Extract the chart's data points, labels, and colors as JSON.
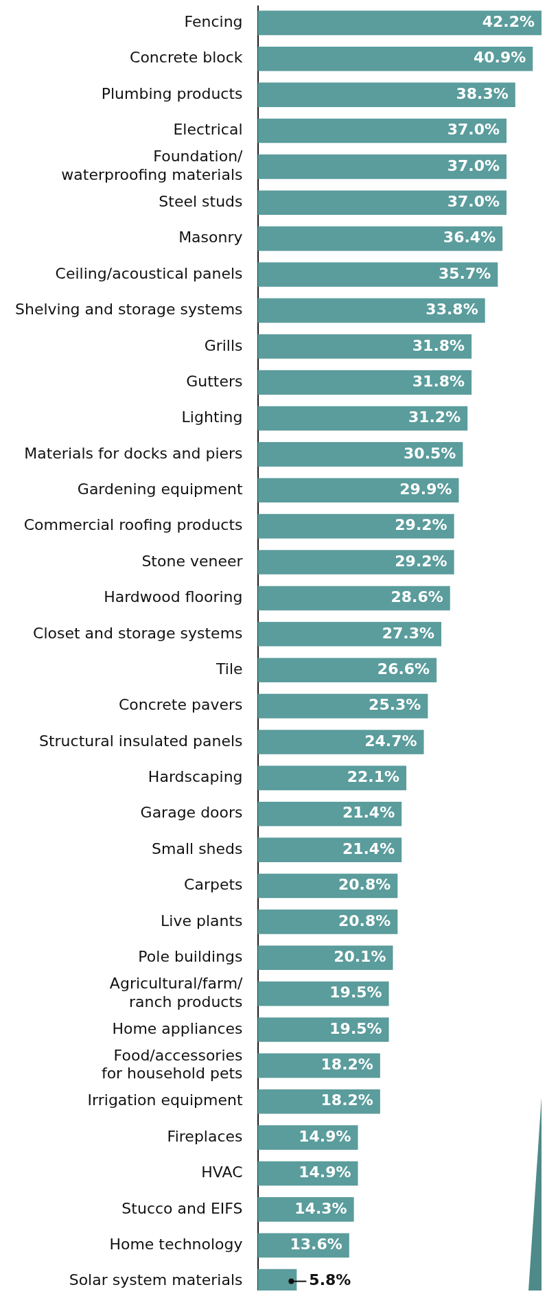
{
  "chart_data": {
    "type": "bar",
    "orientation": "horizontal",
    "color": "#5b9c9c",
    "categories": [
      "Fencing",
      "Concrete block",
      "Plumbing products",
      "Electrical",
      "Foundation/waterproofing materials",
      "Steel studs",
      "Masonry",
      "Ceiling/acoustical panels",
      "Shelving and storage systems",
      "Grills",
      "Gutters",
      "Lighting",
      "Materials for docks and piers",
      "Gardening equipment",
      "Commercial roofing products",
      "Stone veneer",
      "Hardwood flooring",
      "Closet and storage systems",
      "Tile",
      "Concrete pavers",
      "Structural insulated panels",
      "Hardscaping",
      "Garage doors",
      "Small sheds",
      "Carpets",
      "Live plants",
      "Pole buildings",
      "Agricultural/farm/ranch products",
      "Home appliances",
      "Food/accessories for household pets",
      "Irrigation equipment",
      "Fireplaces",
      "HVAC",
      "Stucco and EIFS",
      "Home technology",
      "Solar system materials"
    ],
    "values": [
      42.2,
      40.9,
      38.3,
      37.0,
      37.0,
      37.0,
      36.4,
      35.7,
      33.8,
      31.8,
      31.8,
      31.2,
      30.5,
      29.9,
      29.2,
      29.2,
      28.6,
      27.3,
      26.6,
      25.3,
      24.7,
      22.1,
      21.4,
      21.4,
      20.8,
      20.8,
      20.1,
      19.5,
      19.5,
      18.2,
      18.2,
      14.9,
      14.9,
      14.3,
      13.6,
      5.8
    ],
    "value_labels": [
      "42.2%",
      "40.9%",
      "38.3%",
      "37.0%",
      "37.0%",
      "37.0%",
      "36.4%",
      "35.7%",
      "33.8%",
      "31.8%",
      "31.8%",
      "31.2%",
      "30.5%",
      "29.9%",
      "29.2%",
      "29.2%",
      "28.6%",
      "27.3%",
      "26.6%",
      "25.3%",
      "24.7%",
      "22.1%",
      "21.4%",
      "21.4%",
      "20.8%",
      "20.8%",
      "20.1%",
      "19.5%",
      "19.5%",
      "18.2%",
      "18.2%",
      "14.9%",
      "14.9%",
      "14.3%",
      "13.6%",
      "5.8%"
    ],
    "legend": false
  }
}
